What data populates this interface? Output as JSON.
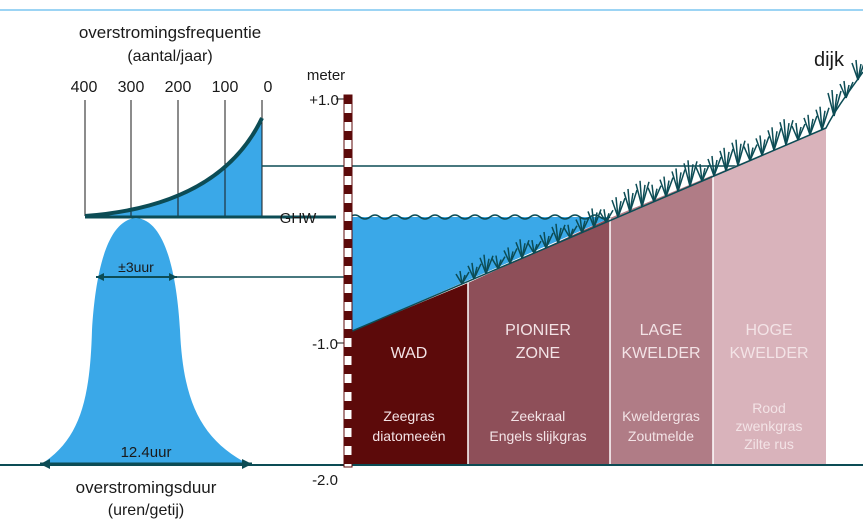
{
  "frequency": {
    "title": "overstromingsfrequentie",
    "unit": "(aantal/jaar)",
    "ticks": [
      "400",
      "300",
      "200",
      "100",
      "0"
    ]
  },
  "duration": {
    "title": "overstromingsduur",
    "unit": "(uren/getij)",
    "width_label": "12.4uur",
    "inner_label": "±3uur"
  },
  "scale": {
    "unit": "meter",
    "ticks": [
      "+1.0",
      "-1.0",
      "-2.0"
    ],
    "ghw_label": "GHW"
  },
  "dike_label": "dijk",
  "zones": [
    {
      "name_lines": [
        "WAD"
      ],
      "vegetation_lines": [
        "Zeegras",
        "diatomeeën"
      ],
      "color": "#5c0a0a"
    },
    {
      "name_lines": [
        "PIONIER",
        "ZONE"
      ],
      "vegetation_lines": [
        "Zeekraal",
        "Engels slijkgras"
      ],
      "color": "#8e4f59"
    },
    {
      "name_lines": [
        "LAGE",
        "KWELDER"
      ],
      "vegetation_lines": [
        "Kweldergras",
        "Zoutmelde"
      ],
      "color": "#b07c86"
    },
    {
      "name_lines": [
        "HOGE",
        "KWELDER"
      ],
      "vegetation_lines": [
        "Rood",
        "zwenkgras",
        "Zilte rus"
      ],
      "color": "#d9b3bb"
    }
  ],
  "colors": {
    "water": "#3aa8e8",
    "line": "#0c4c55",
    "text": "#1a1a1a",
    "zone_text": "#f3e3e6"
  }
}
